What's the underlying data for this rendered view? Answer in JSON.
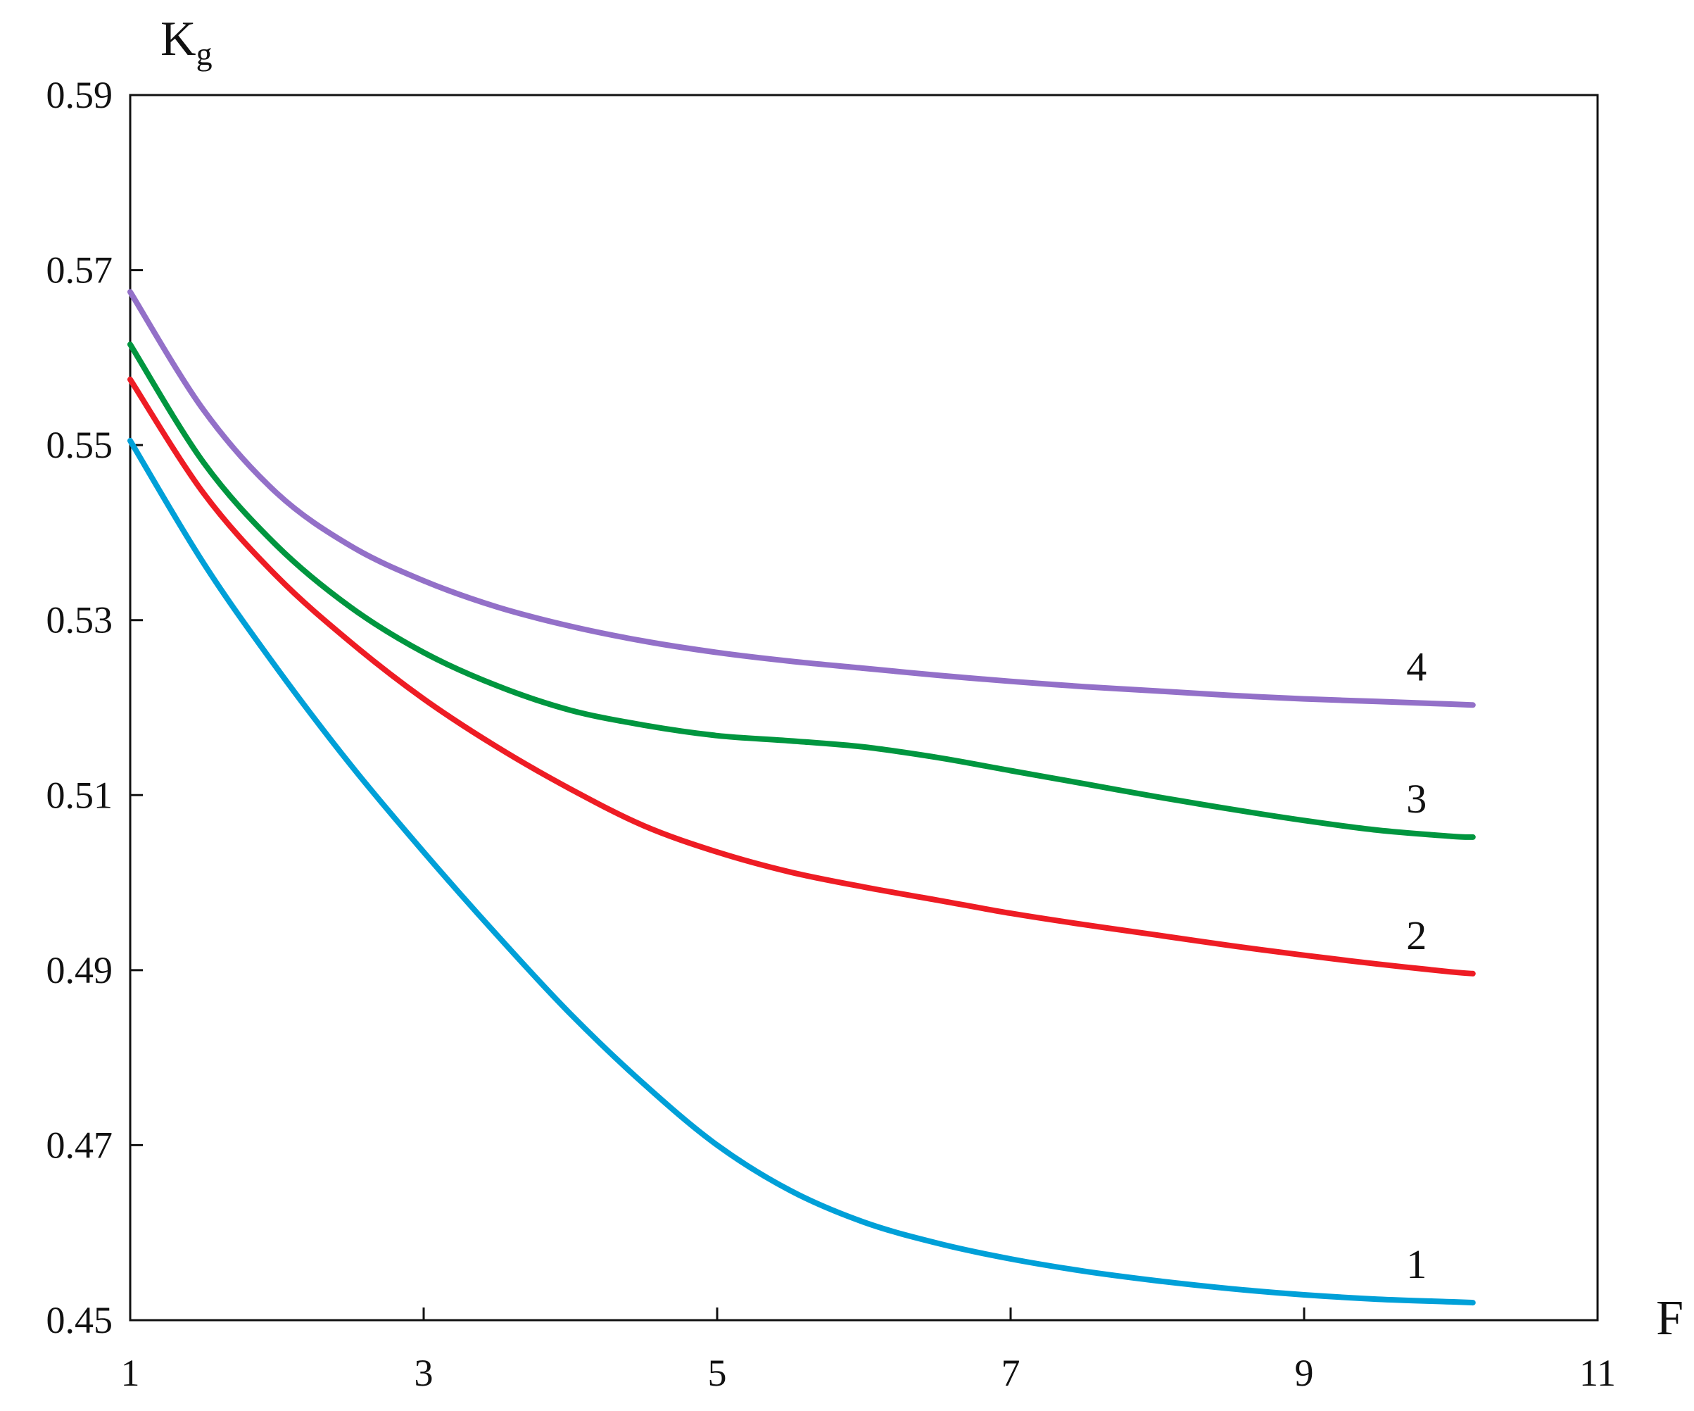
{
  "chart_data": {
    "type": "line",
    "title": "",
    "xlabel": "F",
    "ylabel": "K",
    "ylabel_sub": "g",
    "xlim": [
      1,
      11
    ],
    "ylim": [
      0.45,
      0.59
    ],
    "xticks": [
      1,
      3,
      5,
      7,
      9,
      11
    ],
    "xtick_labels": [
      "1",
      "3",
      "5",
      "7",
      "9",
      "11"
    ],
    "yticks": [
      0.45,
      0.47,
      0.49,
      0.51,
      0.53,
      0.55,
      0.57,
      0.59
    ],
    "ytick_labels": [
      "0.45",
      "0.47",
      "0.49",
      "0.51",
      "0.53",
      "0.55",
      "0.57",
      "0.59"
    ],
    "grid": false,
    "legend": "none",
    "x": [
      1,
      1.5,
      2,
      2.5,
      3,
      3.5,
      4,
      4.5,
      5,
      5.5,
      6,
      6.5,
      7,
      7.5,
      8,
      8.5,
      9,
      9.5,
      10,
      10.15
    ],
    "series": [
      {
        "label": "1",
        "color": "#00A0D8",
        "values": [
          0.5505,
          0.5365,
          0.5245,
          0.5135,
          0.5035,
          0.494,
          0.485,
          0.477,
          0.47,
          0.4648,
          0.4612,
          0.4588,
          0.457,
          0.4556,
          0.4545,
          0.4536,
          0.4529,
          0.4524,
          0.4521,
          0.452
        ]
      },
      {
        "label": "2",
        "color": "#EE1C24",
        "values": [
          0.5575,
          0.5445,
          0.535,
          0.5275,
          0.521,
          0.5155,
          0.5107,
          0.5065,
          0.5035,
          0.5012,
          0.4995,
          0.498,
          0.4965,
          0.4952,
          0.494,
          0.4928,
          0.4917,
          0.4907,
          0.4898,
          0.4896
        ]
      },
      {
        "label": "3",
        "color": "#00963F",
        "values": [
          0.5615,
          0.548,
          0.5385,
          0.5315,
          0.5263,
          0.5225,
          0.5197,
          0.518,
          0.5168,
          0.5162,
          0.5155,
          0.5143,
          0.5128,
          0.5113,
          0.5098,
          0.5084,
          0.5071,
          0.506,
          0.5053,
          0.5052
        ]
      },
      {
        "label": "4",
        "color": "#9370C8",
        "values": [
          0.5675,
          0.554,
          0.5445,
          0.5385,
          0.5345,
          0.5315,
          0.5293,
          0.5276,
          0.5263,
          0.5253,
          0.5245,
          0.5237,
          0.523,
          0.5224,
          0.5219,
          0.5214,
          0.521,
          0.5207,
          0.5204,
          0.5203
        ]
      }
    ]
  }
}
